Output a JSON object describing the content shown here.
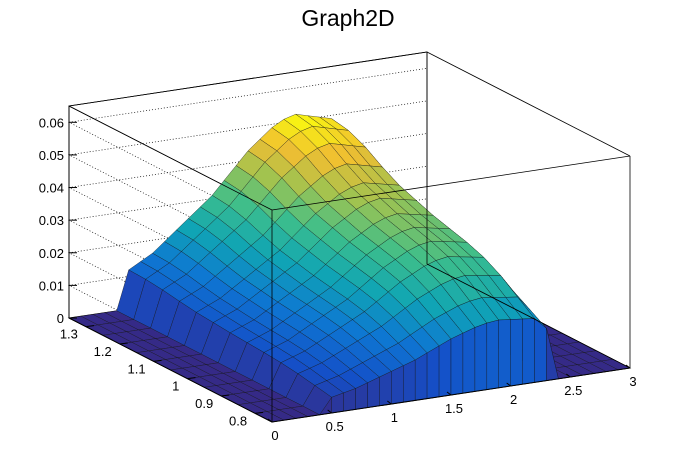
{
  "chart_data": {
    "type": "surface3d",
    "title": "Graph2D",
    "colormap": "viridis",
    "grid": "dotted back walls",
    "xlabel": "",
    "ylabel": "",
    "zlabel": "",
    "x_range": [
      0,
      3
    ],
    "y_range": [
      0.75,
      1.35
    ],
    "z_range": [
      0,
      0.065
    ],
    "x_ticks": [
      "0",
      "0.5",
      "1",
      "1.5",
      "2",
      "2.5",
      "3"
    ],
    "y_ticks": [
      "0.8",
      "0.9",
      "1",
      "1.1",
      "1.2",
      "1.3"
    ],
    "z_ticks": [
      "0",
      "0.01",
      "0.02",
      "0.03",
      "0.04",
      "0.05",
      "0.06"
    ],
    "surface_x": [
      0.0,
      0.1,
      0.2,
      0.3,
      0.4,
      0.5,
      0.6,
      0.7,
      0.8,
      0.9,
      1.0,
      1.1,
      1.2,
      1.3,
      1.4,
      1.5,
      1.6,
      1.7,
      1.8,
      1.9,
      2.0,
      2.1,
      2.2,
      2.3,
      2.4,
      2.5,
      2.6,
      2.7,
      2.8,
      2.9,
      3.0
    ],
    "surface_y": [
      1.35,
      1.3,
      1.25,
      1.2,
      1.15,
      1.1,
      1.05,
      1.0,
      0.95,
      0.9,
      0.85,
      0.8,
      0.75
    ],
    "surface_z_profile": [
      0,
      0,
      0,
      0,
      0,
      0.012,
      0.014,
      0.016,
      0.019,
      0.022,
      0.025,
      0.028,
      0.031,
      0.035,
      0.039,
      0.043,
      0.046,
      0.049,
      0.051,
      0.052,
      0.051,
      0.05,
      0.049,
      0.04,
      0,
      0,
      0,
      0,
      0,
      0,
      0
    ],
    "surface_y_weights": [
      1.0,
      0.98,
      0.93,
      0.86,
      0.8,
      0.76,
      0.72,
      0.69,
      0.66,
      0.62,
      0.56,
      0.48,
      0.4
    ]
  }
}
